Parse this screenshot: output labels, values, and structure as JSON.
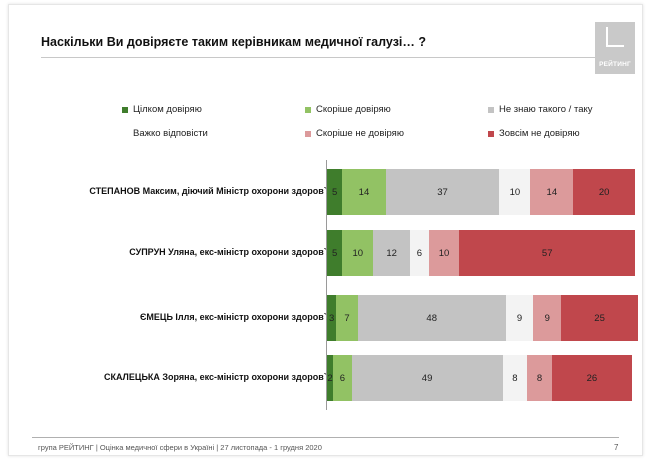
{
  "title": "Наскільки Ви довіряєте таким керівникам медичної галузі… ?",
  "logo_text": "РЕЙТИНГ",
  "legend": [
    {
      "label": "Цілком довіряю",
      "color": "#3f7d2c"
    },
    {
      "label": "Скоріше довіряю",
      "color": "#92c264"
    },
    {
      "label": "Не знаю такого / таку",
      "color": "#c3c3c3"
    },
    {
      "label": "Важко відповісти",
      "color": "#f3f3f3"
    },
    {
      "label": "Скоріше не довіряю",
      "color": "#dc9a9b"
    },
    {
      "label": "Зовсім не довіряю",
      "color": "#c0474c"
    }
  ],
  "chart_data": {
    "type": "bar",
    "orientation": "horizontal",
    "stacked": true,
    "categories": [
      "СТЕПАНОВ Максим, діючий Міністр охорони здоров`я",
      "СУПРУН Уляна, екс-міністр охорони здоров`я",
      "ЄМЕЦЬ Ілля, екс-міністр охорони здоров`я",
      "СКАЛЕЦЬКА Зоряна, екс-міністр охорони здоров`я"
    ],
    "series": [
      {
        "name": "Цілком довіряю",
        "values": [
          5,
          5,
          3,
          2
        ]
      },
      {
        "name": "Скоріше довіряю",
        "values": [
          14,
          10,
          7,
          6
        ]
      },
      {
        "name": "Не знаю такого / таку",
        "values": [
          37,
          12,
          48,
          49
        ]
      },
      {
        "name": "Важко відповісти",
        "values": [
          10,
          6,
          9,
          8
        ]
      },
      {
        "name": "Скоріше не довіряю",
        "values": [
          14,
          10,
          9,
          8
        ]
      },
      {
        "name": "Зовсім не довіряю",
        "values": [
          20,
          57,
          25,
          26
        ]
      }
    ],
    "xlim": [
      0,
      100
    ],
    "legend_position": "top",
    "data_labels": true
  },
  "footer": "група РЕЙТИНГ  |  Оцінка медичної сфери в Україні  |  27 листопада - 1 грудня 2020",
  "page_number": "7"
}
